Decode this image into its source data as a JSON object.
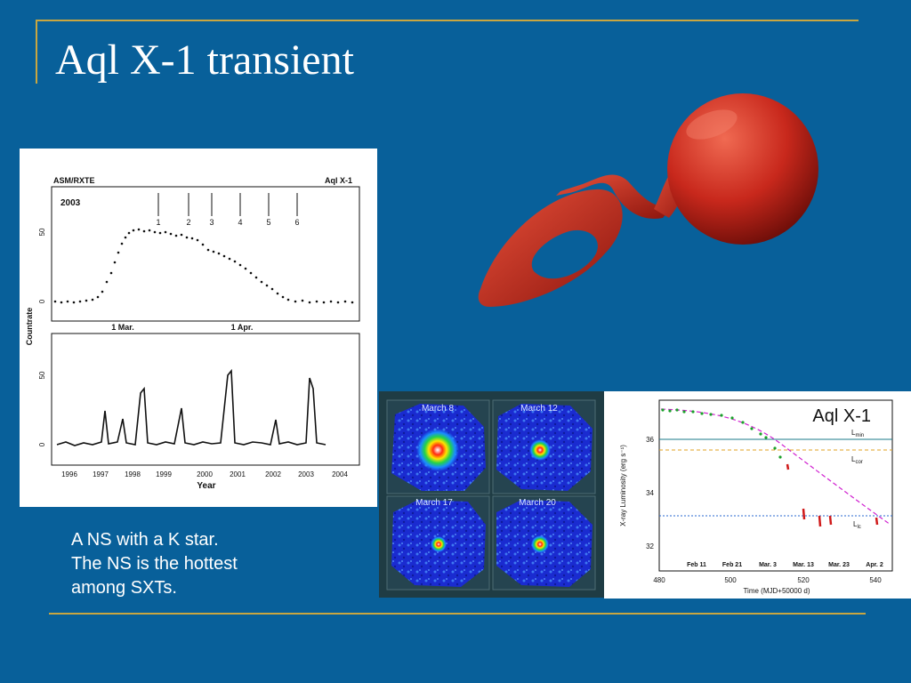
{
  "slide": {
    "title": "Aql X-1 transient",
    "caption": [
      "A NS with a K star.",
      "The NS is the hottest",
      "among SXTs."
    ]
  },
  "colors": {
    "background": "#08609a",
    "accent_rule": "#c9a640",
    "star": "#c8281c"
  },
  "asm_figure": {
    "header_left": "ASM/RXTE",
    "header_right": "Aql X-1",
    "year_label": "2003",
    "outburst_labels": [
      "1",
      "2",
      "3",
      "4",
      "5",
      "6"
    ],
    "top_ticks_y": [
      "50",
      "0"
    ],
    "top_ticks_x": [
      "1 Mar.",
      "1 Apr."
    ],
    "bottom_ticks_y": [
      "50",
      "0"
    ],
    "bottom_ticks_x": [
      "1996",
      "1997",
      "1998",
      "1999",
      "2000",
      "2001",
      "2002",
      "2003",
      "2004"
    ],
    "ylabel": "Countrate",
    "xlabel": "Year"
  },
  "images_figure": {
    "panels": [
      "March 8",
      "March 12",
      "March 17",
      "March 20"
    ]
  },
  "lum_figure": {
    "title": "Aql X-1",
    "ylabel": "X-ray Luminosity (erg s⁻¹)",
    "xlabel": "Time (MJD+50000 d)",
    "y_ticks": [
      "36",
      "34",
      "32"
    ],
    "x_ticks": [
      "480",
      "500",
      "520",
      "540"
    ],
    "date_labels": [
      "Feb 11",
      "Feb 21",
      "Mar. 3",
      "Mar. 13",
      "Mar. 23",
      "Apr. 2"
    ],
    "line_labels": {
      "min": "L",
      "min_sub": "min",
      "cor": "L",
      "cor_sub": "cor",
      "lc": "L",
      "lc_sub": "lc"
    }
  }
}
